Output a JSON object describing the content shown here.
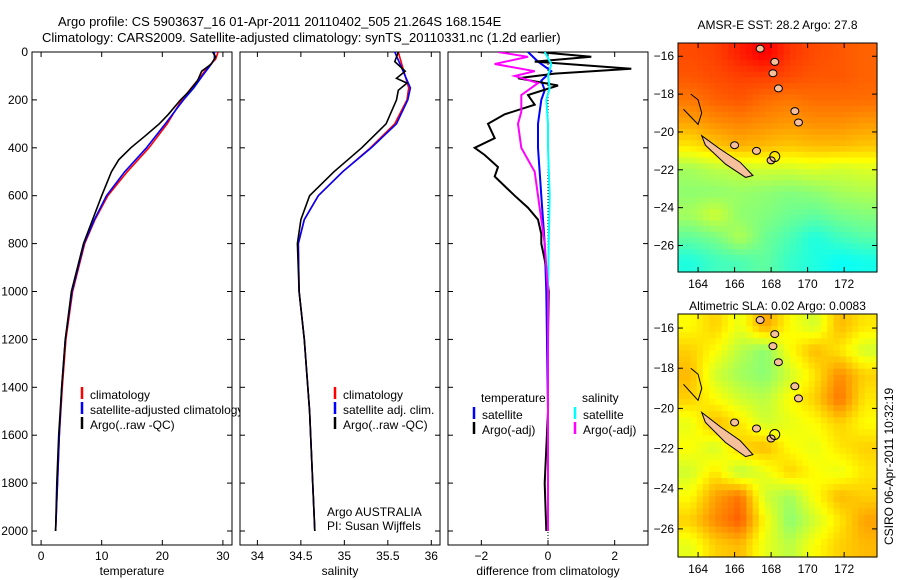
{
  "title_line1": "Argo profile: CS 5903637_16 01-Apr-2011 20110402_505 21.264S 168.154E",
  "title_line2": "Climatology: CARS2009. Satellite-adjusted climatology: synTS_20110331.nc (1.2d earlier)",
  "side_label": "CSIRO 06-Apr-2011 10:32:19",
  "colors": {
    "clim": "#ff0000",
    "sat": "#0000ff",
    "argo": "#000000",
    "cyan": "#00ffff",
    "magenta": "#ff00ff"
  },
  "chart_data": [
    {
      "type": "line",
      "id": "temperature",
      "xlabel": "temperature",
      "xlim": [
        -1.5,
        31.5
      ],
      "ylim": [
        0,
        2050
      ],
      "yreverse": true,
      "xticks": [
        0,
        10,
        20,
        30
      ],
      "yticks": [
        0,
        200,
        400,
        600,
        800,
        1000,
        1200,
        1400,
        1600,
        1800,
        2000
      ],
      "legend": [
        "climatology",
        "satellite-adjusted climatology",
        "Argo(..raw -QC)"
      ],
      "series": [
        {
          "name": "climatology",
          "color": "#ff0000",
          "depth": [
            0,
            30,
            60,
            100,
            150,
            200,
            300,
            400,
            500,
            600,
            700,
            800,
            1000,
            1200,
            1400,
            1600,
            1800,
            2000
          ],
          "values": [
            29.2,
            28.8,
            27.6,
            26.4,
            24.8,
            23.2,
            20.8,
            17.8,
            14.2,
            11.0,
            8.9,
            7.2,
            5.2,
            4.1,
            3.5,
            3.0,
            2.7,
            2.4
          ]
        },
        {
          "name": "satellite-adjusted climatology",
          "color": "#0000ff",
          "depth": [
            0,
            30,
            60,
            100,
            150,
            200,
            300,
            400,
            500,
            600,
            700,
            800,
            1000,
            1200,
            1400,
            1600,
            1800,
            2000
          ],
          "values": [
            28.6,
            28.6,
            27.8,
            26.6,
            25.2,
            23.5,
            20.5,
            17.4,
            13.8,
            10.8,
            8.8,
            7.1,
            5.1,
            4.0,
            3.4,
            3.0,
            2.7,
            2.4
          ]
        },
        {
          "name": "Argo(..raw -QC)",
          "color": "#000000",
          "depth": [
            0,
            20,
            50,
            80,
            120,
            170,
            200,
            260,
            300,
            350,
            400,
            450,
            500,
            600,
            700,
            800,
            1000,
            1200,
            1400,
            1600,
            1800,
            2000
          ],
          "values": [
            28.3,
            28.8,
            28.1,
            26.5,
            25.8,
            24.2,
            23.0,
            21.0,
            19.5,
            17.2,
            14.8,
            12.8,
            11.6,
            10.0,
            8.5,
            7.0,
            5.0,
            4.0,
            3.4,
            2.9,
            2.6,
            2.4
          ]
        }
      ]
    },
    {
      "type": "line",
      "id": "salinity",
      "xlabel": "salinity",
      "xlim": [
        33.8,
        36.1
      ],
      "ylim": [
        0,
        2050
      ],
      "yreverse": true,
      "xticks": [
        34,
        34.5,
        35,
        35.5,
        36
      ],
      "legend": [
        "climatology",
        "satellite adj. clim.",
        "Argo(..raw -QC)"
      ],
      "annotation": [
        "Argo AUSTRALIA",
        "PI: Susan Wijffels"
      ],
      "series": [
        {
          "name": "climatology",
          "color": "#ff0000",
          "depth": [
            0,
            50,
            100,
            150,
            200,
            300,
            400,
            500,
            600,
            700,
            800,
            1000,
            1200,
            1500,
            2000
          ],
          "values": [
            35.62,
            35.66,
            35.7,
            35.74,
            35.72,
            35.58,
            35.3,
            34.98,
            34.7,
            34.54,
            34.47,
            34.48,
            34.54,
            34.6,
            34.66
          ]
        },
        {
          "name": "satellite adj. clim.",
          "color": "#0000ff",
          "depth": [
            0,
            50,
            100,
            150,
            200,
            300,
            400,
            500,
            600,
            700,
            800,
            1000,
            1200,
            1500,
            2000
          ],
          "values": [
            35.58,
            35.64,
            35.7,
            35.76,
            35.73,
            35.6,
            35.31,
            34.98,
            34.7,
            34.54,
            34.47,
            34.48,
            34.54,
            34.6,
            34.66
          ]
        },
        {
          "name": "Argo(..raw -QC)",
          "color": "#000000",
          "depth": [
            0,
            40,
            80,
            110,
            130,
            160,
            200,
            300,
            400,
            500,
            600,
            700,
            800,
            1000,
            1200,
            1500,
            2000
          ],
          "values": [
            35.62,
            35.58,
            35.7,
            35.6,
            35.72,
            35.62,
            35.6,
            35.48,
            35.2,
            34.88,
            34.6,
            34.5,
            34.46,
            34.48,
            34.54,
            34.6,
            34.66
          ]
        }
      ]
    },
    {
      "type": "line",
      "id": "difference",
      "xlabel": "difference from climatology",
      "xlim": [
        -3,
        3
      ],
      "ylim": [
        0,
        2050
      ],
      "yreverse": true,
      "xticks": [
        -2,
        0,
        2
      ],
      "legend_headers": [
        "temperature",
        "salinity"
      ],
      "legend": [
        "satellite",
        "Argo(-adj)",
        "satellite",
        "Argo(-adj)"
      ],
      "series": [
        {
          "name": "temperature satellite",
          "color": "#0000ff",
          "depth": [
            0,
            40,
            80,
            120,
            160,
            200,
            300,
            400,
            600,
            800,
            1000,
            1500,
            2000
          ],
          "values": [
            -0.6,
            -0.3,
            0.1,
            -0.2,
            -0.1,
            -0.2,
            -0.3,
            -0.3,
            -0.2,
            -0.1,
            -0.05,
            0,
            0
          ]
        },
        {
          "name": "temperature Argo(-adj)",
          "color": "#000000",
          "depth": [
            0,
            20,
            40,
            70,
            90,
            110,
            140,
            180,
            220,
            260,
            300,
            360,
            400,
            430,
            480,
            520,
            560,
            600,
            650,
            700,
            760,
            800,
            900,
            1000,
            1200,
            1500,
            1800,
            2000
          ],
          "values": [
            -0.3,
            1.3,
            -0.4,
            2.5,
            0.2,
            -0.9,
            0.3,
            -0.6,
            -0.4,
            -1.3,
            -1.8,
            -1.6,
            -2.2,
            -1.9,
            -1.5,
            -1.6,
            -1.3,
            -1.0,
            -0.6,
            -0.3,
            -0.2,
            -0.2,
            -0.05,
            0.02,
            0,
            0,
            -0.1,
            -0.05
          ]
        },
        {
          "name": "salinity satellite",
          "color": "#00ffff",
          "depth": [
            0,
            50,
            100,
            150,
            200,
            300,
            400,
            600,
            800,
            1000,
            1500,
            2000
          ],
          "values": [
            -0.1,
            0.1,
            0,
            0.05,
            -0.05,
            0,
            0,
            0.05,
            0.02,
            0,
            0,
            0
          ]
        },
        {
          "name": "salinity Argo(-adj)",
          "color": "#ff00ff",
          "depth": [
            0,
            20,
            50,
            80,
            100,
            130,
            180,
            250,
            300,
            400,
            500,
            600,
            700,
            800,
            1000,
            1500,
            2000
          ],
          "values": [
            -1.5,
            -0.6,
            -1.6,
            -0.4,
            -1.0,
            -0.3,
            -0.8,
            -0.8,
            -0.9,
            -0.8,
            -0.4,
            -0.3,
            -0.2,
            -0.1,
            0,
            0,
            0
          ]
        }
      ]
    },
    {
      "type": "heatmap",
      "id": "sst",
      "title": "AMSR-E SST: 28.2 Argo: 27.8",
      "xticks": [
        164,
        166,
        168,
        170,
        172
      ],
      "yticks": [
        -16,
        -18,
        -20,
        -22,
        -24,
        -26
      ],
      "xlim": [
        162.9,
        173.8
      ],
      "ylim": [
        -27.4,
        -15.3
      ],
      "vrange": [
        24.5,
        29.5
      ],
      "values": [
        [
          28.6,
          28.7,
          29.0,
          29.3,
          28.8,
          28.6,
          28.5,
          28.4
        ],
        [
          28.5,
          28.6,
          28.7,
          28.7,
          28.6,
          28.5,
          28.5,
          28.4
        ],
        [
          28.2,
          28.4,
          28.5,
          28.3,
          28.2,
          28.3,
          28.3,
          28.3
        ],
        [
          27.8,
          28.0,
          28.1,
          28.0,
          27.9,
          28.0,
          28.0,
          27.9
        ],
        [
          27.2,
          27.5,
          27.7,
          27.6,
          27.5,
          27.6,
          27.6,
          27.5
        ],
        [
          26.2,
          26.4,
          26.5,
          26.6,
          26.6,
          26.7,
          26.6,
          26.7
        ],
        [
          26.0,
          26.0,
          26.1,
          26.0,
          25.9,
          26.0,
          26.2,
          26.3
        ],
        [
          26.2,
          26.6,
          26.0,
          25.9,
          25.7,
          25.6,
          25.8,
          25.9
        ],
        [
          25.6,
          25.8,
          26.3,
          25.7,
          25.4,
          25.0,
          25.3,
          25.5
        ],
        [
          25.0,
          25.3,
          25.4,
          25.6,
          25.2,
          25.0,
          24.8,
          24.9
        ]
      ]
    },
    {
      "type": "heatmap",
      "id": "sla",
      "title": "Altimetric SLA: 0.02 Argo: 0.0083",
      "xticks": [
        164,
        166,
        168,
        170,
        172
      ],
      "yticks": [
        -16,
        -18,
        -20,
        -22,
        -24,
        -26
      ],
      "xlim": [
        162.9,
        173.8
      ],
      "ylim": [
        -27.4,
        -15.3
      ],
      "vrange": [
        -0.12,
        0.12
      ],
      "values": [
        [
          0.0,
          0.02,
          -0.01,
          0.04,
          0.0,
          -0.02,
          0.03,
          0.01
        ],
        [
          0.02,
          0.0,
          -0.03,
          -0.05,
          0.0,
          0.03,
          0.01,
          -0.02
        ],
        [
          0.03,
          -0.02,
          -0.04,
          -0.05,
          -0.02,
          0.01,
          0.05,
          0.02
        ],
        [
          0.02,
          0.0,
          -0.02,
          -0.03,
          0.0,
          0.02,
          0.06,
          0.01
        ],
        [
          -0.01,
          0.03,
          0.01,
          -0.02,
          -0.01,
          0.0,
          0.02,
          0.0
        ],
        [
          0.0,
          -0.02,
          0.02,
          0.03,
          0.0,
          -0.01,
          0.01,
          0.02
        ],
        [
          -0.02,
          0.01,
          -0.03,
          -0.01,
          0.02,
          0.0,
          -0.01,
          0.01
        ],
        [
          0.0,
          0.04,
          0.06,
          -0.02,
          -0.04,
          0.0,
          0.03,
          0.02
        ],
        [
          0.02,
          0.05,
          0.07,
          0.0,
          -0.05,
          -0.02,
          0.01,
          0.04
        ],
        [
          -0.01,
          0.02,
          0.03,
          -0.01,
          -0.03,
          0.0,
          0.02,
          0.03
        ]
      ]
    }
  ]
}
